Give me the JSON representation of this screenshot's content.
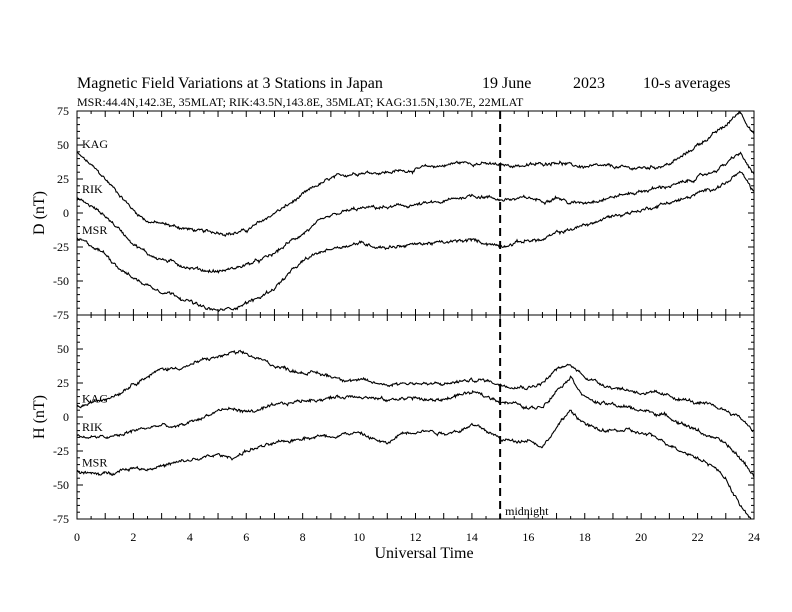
{
  "header": {
    "title": "Magnetic Field Variations at 3 Stations in Japan",
    "date": "19 June",
    "year": "2023",
    "sampling": "10-s averages",
    "stations_info": "MSR:44.4N,142.3E, 35MLAT;  RIK:43.5N,143.8E, 35MLAT;  KAG:31.5N,130.7E, 22MLAT"
  },
  "chart_data": {
    "type": "line",
    "xlabel": "Universal Time",
    "xlim": [
      0,
      24
    ],
    "xticks": [
      0,
      2,
      4,
      6,
      8,
      10,
      12,
      14,
      16,
      18,
      20,
      22,
      24
    ],
    "marker": {
      "x": 15,
      "label": "midnight"
    },
    "panels": [
      {
        "ylabel": "D (nT)",
        "ylim": [
          -75,
          75
        ],
        "yticks": [
          75,
          50,
          25,
          0,
          -25,
          -50,
          -75
        ],
        "series": [
          {
            "name": "KAG",
            "x": [
              0,
              0.5,
              1,
              1.5,
              2,
              2.5,
              3,
              3.5,
              4,
              4.5,
              5,
              5.5,
              6,
              6.5,
              7,
              7.5,
              8,
              8.5,
              9,
              9.5,
              10,
              10.5,
              11,
              11.5,
              12,
              12.5,
              13,
              13.5,
              14,
              14.5,
              15,
              15.5,
              16,
              16.5,
              17,
              17.5,
              18,
              18.5,
              19,
              19.5,
              20,
              20.5,
              21,
              21.5,
              22,
              22.5,
              23,
              23.5,
              24
            ],
            "values": [
              44,
              35,
              25,
              14,
              2,
              -6,
              -8,
              -10,
              -12,
              -14,
              -14,
              -15,
              -13,
              -7,
              0,
              6,
              13,
              20,
              25,
              28,
              30,
              30,
              30,
              31,
              32,
              34,
              35,
              37,
              37,
              36,
              35,
              35,
              35,
              36,
              38,
              35,
              34,
              34,
              34,
              33,
              33,
              34,
              36,
              42,
              50,
              57,
              64,
              75,
              58
            ]
          },
          {
            "name": "RIK",
            "x": [
              0,
              0.5,
              1,
              1.5,
              2,
              2.5,
              3,
              3.5,
              4,
              4.5,
              5,
              5.5,
              6,
              6.5,
              7,
              7.5,
              8,
              8.5,
              9,
              9.5,
              10,
              10.5,
              11,
              11.5,
              12,
              12.5,
              13,
              13.5,
              14,
              14.5,
              15,
              15.5,
              16,
              16.5,
              17,
              17.5,
              18,
              18.5,
              19,
              19.5,
              20,
              20.5,
              21,
              21.5,
              22,
              22.5,
              23,
              23.5,
              24
            ],
            "values": [
              11,
              5,
              -2,
              -12,
              -22,
              -30,
              -34,
              -37,
              -40,
              -42,
              -43,
              -41,
              -38,
              -35,
              -30,
              -22,
              -15,
              -8,
              -3,
              1,
              3,
              4,
              4,
              5,
              6,
              7,
              8,
              11,
              13,
              12,
              10,
              10,
              11,
              9,
              12,
              7,
              8,
              10,
              12,
              14,
              16,
              18,
              20,
              22,
              26,
              30,
              36,
              44,
              28
            ]
          },
          {
            "name": "MSR",
            "x": [
              0,
              0.5,
              1,
              1.5,
              2,
              2.5,
              3,
              3.5,
              4,
              4.5,
              5,
              5.5,
              6,
              6.5,
              7,
              7.5,
              8,
              8.5,
              9,
              9.5,
              10,
              10.5,
              11,
              11.5,
              12,
              12.5,
              13,
              13.5,
              14,
              14.5,
              15,
              15.5,
              16,
              16.5,
              17,
              17.5,
              18,
              18.5,
              19,
              19.5,
              20,
              20.5,
              21,
              21.5,
              22,
              22.5,
              23,
              23.5,
              24
            ],
            "values": [
              -19,
              -24,
              -30,
              -40,
              -48,
              -53,
              -57,
              -60,
              -65,
              -70,
              -72,
              -70,
              -66,
              -62,
              -55,
              -45,
              -36,
              -30,
              -26,
              -24,
              -22,
              -24,
              -25,
              -24,
              -23,
              -22,
              -22,
              -21,
              -20,
              -22,
              -24,
              -22,
              -20,
              -20,
              -15,
              -12,
              -9,
              -6,
              -2,
              0,
              2,
              5,
              8,
              10,
              14,
              18,
              22,
              30,
              15
            ]
          }
        ]
      },
      {
        "ylabel": "H (nT)",
        "ylim": [
          -75,
          75
        ],
        "yticks": [
          50,
          25,
          0,
          -25,
          -50,
          -75
        ],
        "series": [
          {
            "name": "KAG",
            "x": [
              0,
              0.5,
              1,
              1.5,
              2,
              2.5,
              3,
              3.5,
              4,
              4.5,
              5,
              5.5,
              6,
              6.5,
              7,
              7.5,
              8,
              8.5,
              9,
              9.5,
              10,
              10.5,
              11,
              11.5,
              12,
              12.5,
              13,
              13.5,
              14,
              14.5,
              15,
              15.5,
              16,
              16.5,
              17,
              17.5,
              18,
              18.5,
              19,
              19.5,
              20,
              20.5,
              21,
              21.5,
              22,
              22.5,
              23,
              23.5,
              24
            ],
            "values": [
              7,
              10,
              14,
              18,
              25,
              30,
              35,
              36,
              38,
              42,
              44,
              47,
              46,
              42,
              38,
              35,
              33,
              32,
              30,
              28,
              27,
              25,
              24,
              25,
              25,
              24,
              24,
              26,
              27,
              27,
              24,
              23,
              22,
              25,
              35,
              38,
              30,
              25,
              22,
              20,
              18,
              17,
              15,
              13,
              10,
              8,
              5,
              0,
              -10
            ]
          },
          {
            "name": "RIK",
            "x": [
              0,
              0.5,
              1,
              1.5,
              2,
              2.5,
              3,
              3.5,
              4,
              4.5,
              5,
              5.5,
              6,
              6.5,
              7,
              7.5,
              8,
              8.5,
              9,
              9.5,
              10,
              10.5,
              11,
              11.5,
              12,
              12.5,
              13,
              13.5,
              14,
              14.5,
              15,
              15.5,
              16,
              16.5,
              17,
              17.5,
              18,
              18.5,
              19,
              19.5,
              20,
              20.5,
              21,
              21.5,
              22,
              22.5,
              23,
              23.5,
              24
            ],
            "values": [
              -14,
              -15,
              -15,
              -14,
              -10,
              -8,
              -6,
              -8,
              -4,
              0,
              5,
              6,
              4,
              5,
              8,
              10,
              12,
              13,
              14,
              15,
              16,
              14,
              12,
              14,
              14,
              12,
              13,
              16,
              18,
              15,
              12,
              10,
              6,
              8,
              20,
              30,
              15,
              10,
              9,
              7,
              5,
              3,
              0,
              -5,
              -10,
              -15,
              -20,
              -30,
              -43
            ]
          },
          {
            "name": "MSR",
            "x": [
              0,
              0.5,
              1,
              1.5,
              2,
              2.5,
              3,
              3.5,
              4,
              4.5,
              5,
              5.5,
              6,
              6.5,
              7,
              7.5,
              8,
              8.5,
              9,
              9.5,
              10,
              10.5,
              11,
              11.5,
              12,
              12.5,
              13,
              13.5,
              14,
              14.5,
              15,
              15.5,
              16,
              16.5,
              17,
              17.5,
              18,
              18.5,
              19,
              19.5,
              20,
              20.5,
              21,
              21.5,
              22,
              22.5,
              23,
              23.5,
              24
            ],
            "values": [
              -40,
              -42,
              -42,
              -39,
              -37,
              -38,
              -36,
              -34,
              -32,
              -30,
              -28,
              -30,
              -25,
              -22,
              -20,
              -18,
              -15,
              -14,
              -14,
              -12,
              -12,
              -16,
              -20,
              -12,
              -10,
              -10,
              -12,
              -10,
              -6,
              -10,
              -16,
              -18,
              -16,
              -22,
              -8,
              5,
              -5,
              -10,
              -10,
              -10,
              -12,
              -15,
              -20,
              -25,
              -30,
              -35,
              -45,
              -65,
              -78
            ]
          }
        ]
      }
    ]
  }
}
